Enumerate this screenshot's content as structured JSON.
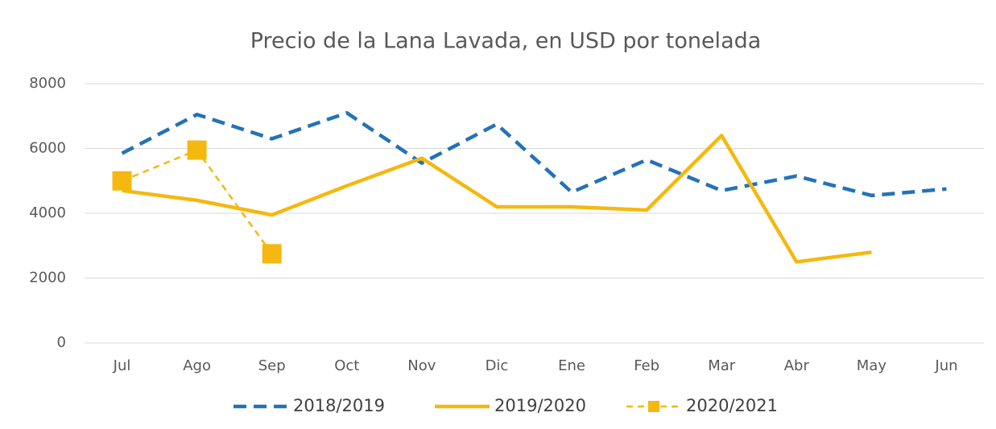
{
  "chart_data": {
    "type": "line",
    "title": "Precio de la Lana Lavada, en USD por tonelada",
    "categories": [
      "Jul",
      "Ago",
      "Sep",
      "Oct",
      "Nov",
      "Dic",
      "Ene",
      "Feb",
      "Mar",
      "Abr",
      "May",
      "Jun"
    ],
    "series": [
      {
        "name": "2018/2019",
        "color": "#2472b8",
        "dash": true,
        "marker": false,
        "values": [
          5850,
          7050,
          6300,
          7100,
          5550,
          6750,
          4650,
          5650,
          4700,
          5150,
          4550,
          4750
        ]
      },
      {
        "name": "2019/2020",
        "color": "#f5b810",
        "dash": false,
        "marker": false,
        "values": [
          4700,
          4400,
          3950,
          4850,
          5700,
          4200,
          4200,
          4100,
          6400,
          2500,
          2800,
          null
        ]
      },
      {
        "name": "2020/2021",
        "color": "#f5b810",
        "dash": true,
        "marker": true,
        "values": [
          5000,
          5950,
          2750,
          null,
          null,
          null,
          null,
          null,
          null,
          null,
          null,
          null
        ]
      }
    ],
    "ylim": [
      0,
      8000
    ],
    "yticks": [
      0,
      2000,
      4000,
      6000,
      8000
    ],
    "grid": true,
    "legend": "bottom"
  }
}
